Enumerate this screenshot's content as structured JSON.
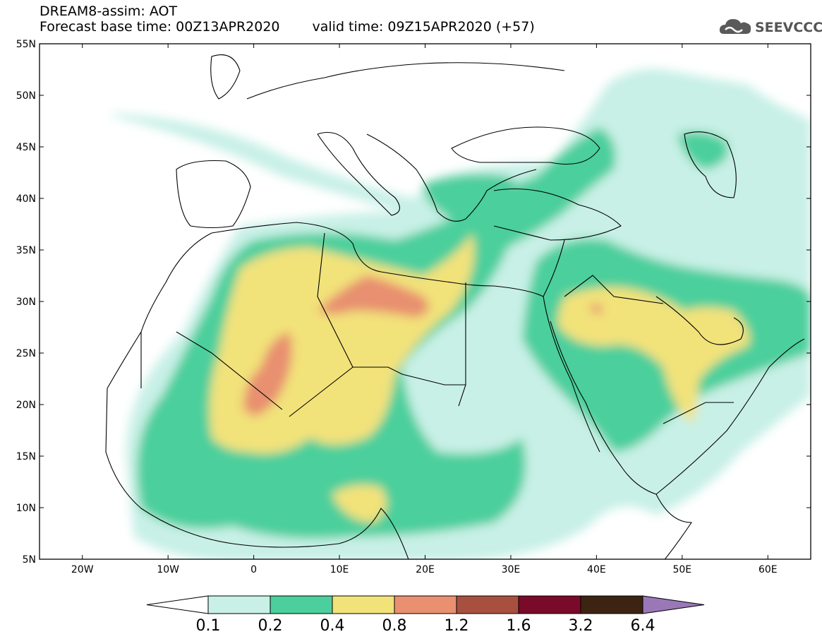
{
  "header": {
    "title_line1": "DREAM8-assim: AOT",
    "base_time": "Forecast base time: 00Z13APR2020",
    "valid_time": "valid time: 09Z15APR2020 (+57)"
  },
  "logo": {
    "text": "SEEVCCC",
    "icon": "cloud-icon"
  },
  "map": {
    "lon_range": [
      -25,
      65
    ],
    "lat_range": [
      5,
      55
    ],
    "lat_ticks": [
      "5N",
      "10N",
      "15N",
      "20N",
      "25N",
      "30N",
      "35N",
      "40N",
      "45N",
      "50N",
      "55N"
    ],
    "lon_ticks": [
      "20W",
      "10W",
      "0",
      "10E",
      "20E",
      "30E",
      "40E",
      "50E",
      "60E"
    ]
  },
  "colorbar": {
    "levels": [
      "0.1",
      "0.2",
      "0.4",
      "0.8",
      "1.2",
      "1.6",
      "3.2",
      "6.4"
    ],
    "colors": [
      "#ffffff",
      "#c8f0e6",
      "#4ccf9c",
      "#f2e27a",
      "#e89070",
      "#a85040",
      "#7a0a2a",
      "#3d2412",
      "#9a78b8"
    ]
  }
}
